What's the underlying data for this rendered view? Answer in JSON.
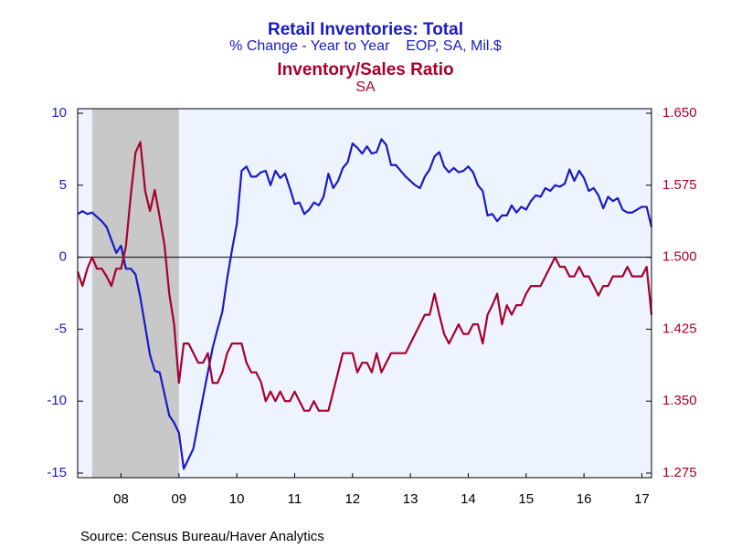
{
  "chart_data": {
    "type": "line",
    "title": "Retail Inventories: Total",
    "subtitle": "% Change - Year to Year    EOP, SA, Mil.$",
    "title2": "Inventory/Sales Ratio",
    "subtitle2": "SA",
    "source": "Source:  Census Bureau/Haver Analytics",
    "x": [
      2007.75,
      2007.833,
      2007.917,
      2008.0,
      2008.083,
      2008.167,
      2008.25,
      2008.333,
      2008.417,
      2008.5,
      2008.583,
      2008.667,
      2008.75,
      2008.833,
      2008.917,
      2009.0,
      2009.083,
      2009.167,
      2009.25,
      2009.333,
      2009.417,
      2009.5,
      2009.583,
      2009.667,
      2009.75,
      2009.833,
      2009.917,
      2010.0,
      2010.083,
      2010.167,
      2010.25,
      2010.333,
      2010.417,
      2010.5,
      2010.583,
      2010.667,
      2010.75,
      2010.833,
      2010.917,
      2011.0,
      2011.083,
      2011.167,
      2011.25,
      2011.333,
      2011.417,
      2011.5,
      2011.583,
      2011.667,
      2011.75,
      2011.833,
      2011.917,
      2012.0,
      2012.083,
      2012.167,
      2012.25,
      2012.333,
      2012.417,
      2012.5,
      2012.583,
      2012.667,
      2012.75,
      2012.833,
      2012.917,
      2013.0,
      2013.083,
      2013.167,
      2013.25,
      2013.333,
      2013.417,
      2013.5,
      2013.583,
      2013.667,
      2013.75,
      2013.833,
      2013.917,
      2014.0,
      2014.083,
      2014.167,
      2014.25,
      2014.333,
      2014.417,
      2014.5,
      2014.583,
      2014.667,
      2014.75,
      2014.833,
      2014.917,
      2015.0,
      2015.083,
      2015.167,
      2015.25,
      2015.333,
      2015.417,
      2015.5,
      2015.583,
      2015.667,
      2015.75,
      2015.833,
      2015.917,
      2016.0,
      2016.083,
      2016.167,
      2016.25,
      2016.333,
      2016.417,
      2016.5,
      2016.583,
      2016.667,
      2016.75,
      2016.833,
      2016.917,
      2017.0,
      2017.083,
      2017.167,
      2017.25,
      2017.333,
      2017.417,
      2017.5,
      2017.583,
      2017.667
    ],
    "series": [
      {
        "name": "Retail Inventories: Total",
        "color": "#1a1ac4",
        "axis": "y",
        "values": [
          3.0,
          3.2,
          3.0,
          3.1,
          2.8,
          2.5,
          2.1,
          1.2,
          0.3,
          0.8,
          -0.8,
          -0.8,
          -1.2,
          -2.8,
          -4.8,
          -6.8,
          -7.9,
          -8.0,
          -9.5,
          -11.0,
          -11.5,
          -12.2,
          -14.7,
          -14.0,
          -13.3,
          -11.5,
          -9.7,
          -8.0,
          -6.3,
          -5.0,
          -3.8,
          -1.5,
          0.5,
          2.3,
          6.0,
          6.3,
          5.6,
          5.6,
          5.9,
          6.0,
          5.0,
          6.0,
          5.5,
          5.8,
          4.8,
          3.7,
          3.8,
          3.0,
          3.3,
          3.8,
          3.6,
          4.2,
          5.8,
          4.8,
          5.3,
          6.2,
          6.6,
          7.9,
          7.6,
          7.2,
          7.7,
          7.2,
          7.3,
          8.2,
          7.8,
          6.4,
          6.4,
          6.0,
          5.6,
          5.3,
          5.0,
          4.8,
          5.6,
          6.1,
          7.0,
          7.3,
          6.3,
          5.9,
          6.2,
          5.9,
          6.0,
          6.3,
          5.9,
          5.0,
          4.6,
          2.9,
          3.0,
          2.5,
          2.9,
          2.9,
          3.6,
          3.1,
          3.5,
          3.3,
          3.9,
          4.3,
          4.2,
          4.8,
          4.6,
          5.0,
          4.9,
          5.1,
          6.1,
          5.3,
          6.0,
          5.5,
          4.6,
          4.8,
          4.3,
          3.4,
          4.2,
          3.9,
          4.1,
          3.3,
          3.1,
          3.1,
          3.3,
          3.5,
          3.5,
          2.1
        ]
      },
      {
        "name": "Inventory/Sales Ratio",
        "color": "#a8002c",
        "axis": "y2",
        "values": [
          1.485,
          1.47,
          1.488,
          1.5,
          1.488,
          1.488,
          1.48,
          1.47,
          1.488,
          1.488,
          1.511,
          1.564,
          1.609,
          1.62,
          1.569,
          1.548,
          1.57,
          1.542,
          1.513,
          1.462,
          1.43,
          1.369,
          1.41,
          1.41,
          1.4,
          1.39,
          1.39,
          1.4,
          1.369,
          1.369,
          1.38,
          1.4,
          1.41,
          1.41,
          1.41,
          1.39,
          1.38,
          1.38,
          1.37,
          1.35,
          1.36,
          1.35,
          1.36,
          1.35,
          1.35,
          1.36,
          1.35,
          1.34,
          1.34,
          1.35,
          1.34,
          1.34,
          1.34,
          1.36,
          1.38,
          1.4,
          1.4,
          1.4,
          1.38,
          1.39,
          1.39,
          1.38,
          1.4,
          1.38,
          1.39,
          1.4,
          1.4,
          1.4,
          1.4,
          1.41,
          1.42,
          1.43,
          1.44,
          1.44,
          1.462,
          1.44,
          1.42,
          1.41,
          1.42,
          1.43,
          1.42,
          1.42,
          1.43,
          1.43,
          1.41,
          1.44,
          1.45,
          1.462,
          1.43,
          1.45,
          1.44,
          1.45,
          1.45,
          1.462,
          1.47,
          1.47,
          1.47,
          1.48,
          1.49,
          1.5,
          1.49,
          1.49,
          1.48,
          1.48,
          1.49,
          1.48,
          1.48,
          1.47,
          1.46,
          1.47,
          1.47,
          1.48,
          1.48,
          1.48,
          1.49,
          1.48,
          1.48,
          1.48,
          1.49,
          1.44
        ]
      }
    ],
    "xlim": [
      2007.75,
      2017.667
    ],
    "xticks": [
      {
        "value": 2008.5,
        "label": "08"
      },
      {
        "value": 2009.5,
        "label": "09"
      },
      {
        "value": 2010.5,
        "label": "10"
      },
      {
        "value": 2011.5,
        "label": "11"
      },
      {
        "value": 2012.5,
        "label": "12"
      },
      {
        "value": 2013.5,
        "label": "13"
      },
      {
        "value": 2014.5,
        "label": "14"
      },
      {
        "value": 2015.5,
        "label": "15"
      },
      {
        "value": 2016.5,
        "label": "16"
      },
      {
        "value": 2017.5,
        "label": "17"
      }
    ],
    "ylim": [
      -15,
      10
    ],
    "yticks": [
      -15,
      -10,
      -5,
      0,
      5,
      10
    ],
    "y2lim": [
      1.275,
      1.65
    ],
    "y2ticks": [
      {
        "value": 1.275,
        "label": "1.275"
      },
      {
        "value": 1.35,
        "label": "1.350"
      },
      {
        "value": 1.425,
        "label": "1.425"
      },
      {
        "value": 1.5,
        "label": "1.500"
      },
      {
        "value": 1.575,
        "label": "1.575"
      },
      {
        "value": 1.65,
        "label": "1.650"
      }
    ],
    "shaded_range": [
      2008.0,
      2009.5
    ],
    "zero_line": 0
  }
}
